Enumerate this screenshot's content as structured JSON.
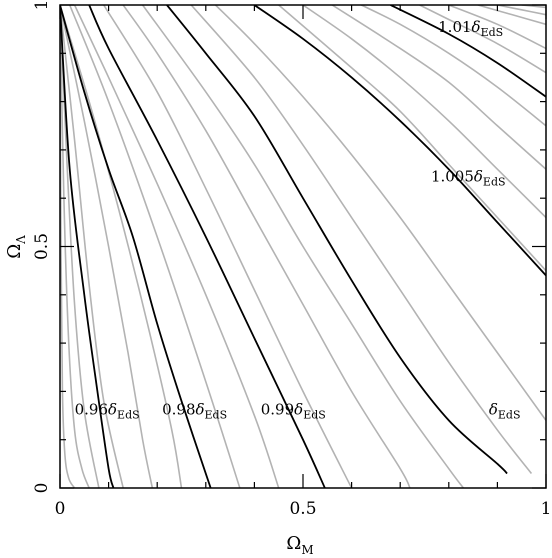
{
  "chart_data": {
    "type": "line",
    "xlabel": "Ω",
    "xlabel_sub": "M",
    "ylabel": "Ω",
    "ylabel_sub": "Λ",
    "xlim": [
      0,
      1
    ],
    "ylim": [
      0,
      1
    ],
    "x_ticks": [
      {
        "value": 0,
        "label": "0"
      },
      {
        "value": 0.5,
        "label": "0.5"
      },
      {
        "value": 1,
        "label": "1"
      }
    ],
    "y_ticks": [
      {
        "value": 0,
        "label": "0"
      },
      {
        "value": 0.5,
        "label": "0.5"
      },
      {
        "value": 1,
        "label": "1"
      }
    ],
    "grid": false,
    "colors": {
      "labeled": "#000000",
      "background_curves": "#b3b3b3"
    },
    "labeled_series": [
      {
        "label_pre": "0.96",
        "label_sym": "δ",
        "label_sub": "EdS",
        "points": [
          [
            0,
            1
          ],
          [
            0.02,
            0.66
          ],
          [
            0.05,
            0.4
          ],
          [
            0.077,
            0.2
          ],
          [
            0.1,
            0.04
          ],
          [
            0.11,
            0
          ]
        ],
        "label_at": [
          0.097,
          0.152
        ]
      },
      {
        "label_pre": "0.98",
        "label_sym": "δ",
        "label_sub": "EdS",
        "points": [
          [
            0,
            1
          ],
          [
            0.05,
            0.82
          ],
          [
            0.1,
            0.66
          ],
          [
            0.15,
            0.52
          ],
          [
            0.2,
            0.34
          ],
          [
            0.25,
            0.18
          ],
          [
            0.31,
            0
          ]
        ],
        "label_at": [
          0.277,
          0.152
        ]
      },
      {
        "label_pre": "0.99",
        "label_sym": "δ",
        "label_sub": "EdS",
        "points": [
          [
            0.06,
            1
          ],
          [
            0.1,
            0.91
          ],
          [
            0.2,
            0.72
          ],
          [
            0.3,
            0.52
          ],
          [
            0.4,
            0.31
          ],
          [
            0.5,
            0.1
          ],
          [
            0.545,
            0
          ]
        ],
        "label_at": [
          0.48,
          0.152
        ]
      },
      {
        "label_pre": "",
        "label_sym": "δ",
        "label_sub": "EdS",
        "points": [
          [
            0.22,
            1
          ],
          [
            0.3,
            0.9
          ],
          [
            0.4,
            0.77
          ],
          [
            0.5,
            0.6
          ],
          [
            0.6,
            0.43
          ],
          [
            0.7,
            0.27
          ],
          [
            0.8,
            0.14
          ],
          [
            0.9,
            0.05
          ],
          [
            0.92,
            0.03
          ]
        ],
        "label_at": [
          0.915,
          0.152
        ]
      },
      {
        "label_pre": "1.005",
        "label_sym": "δ",
        "label_sub": "EdS",
        "points": [
          [
            0.4,
            1
          ],
          [
            0.5,
            0.93
          ],
          [
            0.6,
            0.85
          ],
          [
            0.7,
            0.76
          ],
          [
            0.8,
            0.66
          ],
          [
            0.9,
            0.55
          ],
          [
            1,
            0.44
          ]
        ],
        "label_at": [
          0.84,
          0.635
        ]
      },
      {
        "label_pre": "1.01",
        "label_sym": "δ",
        "label_sub": "EdS",
        "points": [
          [
            0.68,
            1
          ],
          [
            0.8,
            0.94
          ],
          [
            0.9,
            0.88
          ],
          [
            1,
            0.81
          ]
        ],
        "label_at": [
          0.845,
          0.944
        ]
      }
    ],
    "background_series_count": 22,
    "background_series": [
      [
        [
          0,
          1
        ],
        [
          0.002,
          0.5
        ],
        [
          0.005,
          0.2
        ],
        [
          0.01,
          0.07
        ],
        [
          0.018,
          0.02
        ],
        [
          0.03,
          0
        ]
      ],
      [
        [
          0,
          1
        ],
        [
          0.008,
          0.6
        ],
        [
          0.018,
          0.3
        ],
        [
          0.03,
          0.12
        ],
        [
          0.045,
          0.04
        ],
        [
          0.06,
          0
        ]
      ],
      [
        [
          0,
          1
        ],
        [
          0.015,
          0.66
        ],
        [
          0.03,
          0.38
        ],
        [
          0.05,
          0.16
        ],
        [
          0.08,
          0
        ]
      ],
      [
        [
          0,
          1
        ],
        [
          0.03,
          0.72
        ],
        [
          0.06,
          0.42
        ],
        [
          0.09,
          0.18
        ],
        [
          0.13,
          0
        ]
      ],
      [
        [
          0,
          1
        ],
        [
          0.05,
          0.76
        ],
        [
          0.1,
          0.5
        ],
        [
          0.14,
          0.28
        ],
        [
          0.17,
          0.1
        ],
        [
          0.19,
          0
        ]
      ],
      [
        [
          0,
          1
        ],
        [
          0.06,
          0.8
        ],
        [
          0.12,
          0.58
        ],
        [
          0.18,
          0.34
        ],
        [
          0.23,
          0.12
        ],
        [
          0.25,
          0
        ]
      ],
      [
        [
          0.02,
          1
        ],
        [
          0.1,
          0.8
        ],
        [
          0.2,
          0.52
        ],
        [
          0.3,
          0.22
        ],
        [
          0.37,
          0
        ]
      ],
      [
        [
          0.03,
          1
        ],
        [
          0.1,
          0.85
        ],
        [
          0.2,
          0.63
        ],
        [
          0.3,
          0.4
        ],
        [
          0.4,
          0.15
        ],
        [
          0.45,
          0
        ]
      ],
      [
        [
          0.09,
          1
        ],
        [
          0.2,
          0.82
        ],
        [
          0.3,
          0.62
        ],
        [
          0.4,
          0.41
        ],
        [
          0.5,
          0.2
        ],
        [
          0.6,
          0
        ]
      ],
      [
        [
          0.13,
          1
        ],
        [
          0.2,
          0.9
        ],
        [
          0.3,
          0.74
        ],
        [
          0.4,
          0.56
        ],
        [
          0.5,
          0.38
        ],
        [
          0.6,
          0.2
        ],
        [
          0.7,
          0.04
        ],
        [
          0.72,
          0
        ]
      ],
      [
        [
          0.17,
          1
        ],
        [
          0.3,
          0.82
        ],
        [
          0.4,
          0.67
        ],
        [
          0.5,
          0.5
        ],
        [
          0.6,
          0.34
        ],
        [
          0.7,
          0.18
        ],
        [
          0.8,
          0.04
        ],
        [
          0.83,
          0
        ]
      ],
      [
        [
          0.27,
          1
        ],
        [
          0.4,
          0.85
        ],
        [
          0.5,
          0.71
        ],
        [
          0.6,
          0.56
        ],
        [
          0.7,
          0.41
        ],
        [
          0.8,
          0.26
        ],
        [
          0.9,
          0.12
        ],
        [
          0.97,
          0.03
        ]
      ],
      [
        [
          0.32,
          1
        ],
        [
          0.4,
          0.92
        ],
        [
          0.5,
          0.81
        ],
        [
          0.6,
          0.69
        ],
        [
          0.7,
          0.56
        ],
        [
          0.8,
          0.42
        ],
        [
          0.9,
          0.28
        ],
        [
          1,
          0.14
        ]
      ],
      [
        [
          0.45,
          1
        ],
        [
          0.6,
          0.87
        ],
        [
          0.7,
          0.78
        ],
        [
          0.8,
          0.67
        ],
        [
          0.9,
          0.56
        ],
        [
          1,
          0.45
        ]
      ],
      [
        [
          0.5,
          1
        ],
        [
          0.6,
          0.93
        ],
        [
          0.7,
          0.85
        ],
        [
          0.8,
          0.76
        ],
        [
          0.9,
          0.66
        ],
        [
          1,
          0.56
        ]
      ],
      [
        [
          0.56,
          1
        ],
        [
          0.7,
          0.91
        ],
        [
          0.8,
          0.84
        ],
        [
          0.9,
          0.75
        ],
        [
          1,
          0.66
        ]
      ],
      [
        [
          0.62,
          1
        ],
        [
          0.7,
          0.96
        ],
        [
          0.8,
          0.9
        ],
        [
          0.9,
          0.83
        ],
        [
          1,
          0.75
        ]
      ],
      [
        [
          0.74,
          1
        ],
        [
          0.8,
          0.97
        ],
        [
          0.9,
          0.92
        ],
        [
          1,
          0.86
        ]
      ],
      [
        [
          0.8,
          1
        ],
        [
          0.9,
          0.96
        ],
        [
          1,
          0.91
        ]
      ],
      [
        [
          0.86,
          1
        ],
        [
          0.93,
          0.98
        ],
        [
          1,
          0.96
        ]
      ],
      [
        [
          0.9,
          1
        ],
        [
          0.95,
          0.99
        ],
        [
          1,
          0.98
        ]
      ],
      [
        [
          0.95,
          1
        ],
        [
          1,
          0.995
        ]
      ]
    ]
  }
}
